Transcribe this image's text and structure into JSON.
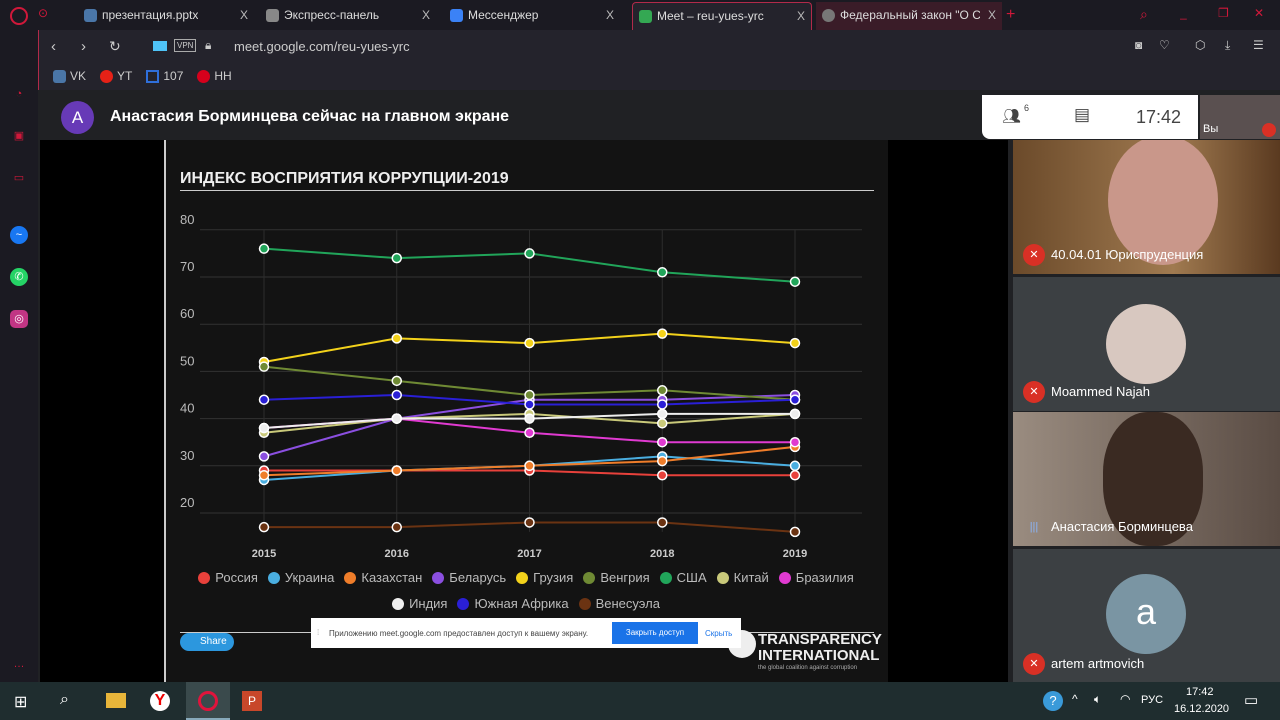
{
  "browser": {
    "tabs": [
      {
        "label": "презентация.pptx",
        "color": "#4a76a8"
      },
      {
        "label": "Экспресс-панель",
        "color": "#888"
      },
      {
        "label": "Мессенджер",
        "color": "#3b82f6"
      },
      {
        "label": "Meet – reu-yues-yrc",
        "color": "#34a853",
        "active": true
      },
      {
        "label": "Федеральный закон \"О Сл",
        "color": "#777"
      }
    ],
    "close": "X",
    "new_tab": "+",
    "url": "meet.google.com/reu-yues-yrc",
    "vpn": "VPN",
    "bookmarks": [
      {
        "label": "VK",
        "color": "#4a76a8"
      },
      {
        "label": "YT",
        "color": "#e62117"
      },
      {
        "label": "107",
        "color": "#2f6fdb"
      },
      {
        "label": "HH",
        "color": "#d6001c"
      }
    ]
  },
  "meet": {
    "avatar_letter": "A",
    "banner": "Анастасия Борминцева сейчас на главном экране",
    "participants_count": "6",
    "time": "17:42",
    "self_label": "Вы",
    "participants": [
      {
        "name": "40.04.01 Юриспруденция",
        "muted": true
      },
      {
        "name": "Moammed Najah",
        "muted": true
      },
      {
        "name": "Анастасия Борминцева",
        "muted": false
      },
      {
        "name": "artem artmovich",
        "muted": true,
        "avatar_letter": "a"
      }
    ],
    "share_bar": {
      "text": "Приложению meet.google.com предоставлен доступ к вашему экрану.",
      "stop": "Закрыть доступ",
      "hide": "Скрыть"
    }
  },
  "slide": {
    "share": "Share",
    "logo_line1": "TRANSPARENCY",
    "logo_line2": "INTERNATIONAL",
    "logo_tagline": "the global coalition against corruption"
  },
  "chart_data": {
    "type": "line",
    "title": "ИНДЕКС ВОСПРИЯТИЯ КОРРУПЦИИ-2019",
    "x": [
      "2015",
      "2016",
      "2017",
      "2018",
      "2019"
    ],
    "ylim": [
      15,
      80
    ],
    "yticks": [
      20,
      30,
      40,
      50,
      60,
      70,
      80
    ],
    "grid": true,
    "legend_placement": "bottom",
    "series": [
      {
        "name": "Россия",
        "color": "#e8413b",
        "values": [
          29,
          29,
          29,
          28,
          28
        ]
      },
      {
        "name": "Украина",
        "color": "#4aaee0",
        "values": [
          27,
          29,
          30,
          32,
          30
        ]
      },
      {
        "name": "Казахстан",
        "color": "#ef7d2a",
        "values": [
          28,
          29,
          30,
          31,
          34
        ]
      },
      {
        "name": "Беларусь",
        "color": "#8b4fe0",
        "values": [
          32,
          40,
          44,
          44,
          45
        ]
      },
      {
        "name": "Грузия",
        "color": "#f3d21b",
        "values": [
          52,
          57,
          56,
          58,
          56
        ]
      },
      {
        "name": "Венгрия",
        "color": "#6f8a34",
        "values": [
          51,
          48,
          45,
          46,
          44
        ]
      },
      {
        "name": "США",
        "color": "#21a55a",
        "values": [
          76,
          74,
          75,
          71,
          69
        ]
      },
      {
        "name": "Китай",
        "color": "#c9c97a",
        "values": [
          37,
          40,
          41,
          39,
          41
        ]
      },
      {
        "name": "Бразилия",
        "color": "#e03ad1",
        "values": [
          38,
          40,
          37,
          35,
          35
        ]
      },
      {
        "name": "Индия",
        "color": "#eeeeee",
        "values": [
          38,
          40,
          40,
          41,
          41
        ]
      },
      {
        "name": "Южная Африка",
        "color": "#2a1fd6",
        "values": [
          44,
          45,
          43,
          43,
          44
        ]
      },
      {
        "name": "Венесуэла",
        "color": "#6b3312",
        "values": [
          17,
          17,
          18,
          18,
          16
        ]
      }
    ]
  },
  "taskbar": {
    "lang": "РУС",
    "time": "17:42",
    "date": "16.12.2020"
  }
}
